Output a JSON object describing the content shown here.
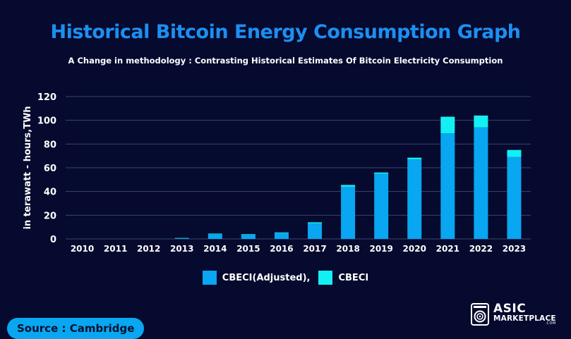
{
  "title": "Historical Bitcoin Energy Consumption Graph",
  "subtitle": "A Change in methodology : Contrasting Historical Estimates Of Bitcoin Electricity Consumption",
  "source_label": "Source : Cambridge",
  "logo": {
    "line1": "ASIC",
    "line2": "MARKETPLACE",
    "line3": ".COM",
    "icon": "asic-miner-icon"
  },
  "colors": {
    "background": "#050a2e",
    "title": "#1d8ff0",
    "adjusted": "#09a6f1",
    "cbeci": "#12f0f4",
    "grid": "#3c4470"
  },
  "chart_data": {
    "type": "bar",
    "stacked": true,
    "categories": [
      "2010",
      "2011",
      "2012",
      "2013",
      "2014",
      "2015",
      "2016",
      "2017",
      "2018",
      "2019",
      "2020",
      "2021",
      "2022",
      "2023"
    ],
    "series": [
      {
        "name": "CBECI(Adjusted),",
        "values": [
          0,
          0,
          0,
          0.5,
          4,
          3.5,
          5,
          13,
          44,
          55,
          67,
          89,
          94,
          69
        ]
      },
      {
        "name": "CBECI",
        "values": [
          0,
          0,
          0,
          0.3,
          0.5,
          0.5,
          0.5,
          1,
          1.5,
          1,
          1.5,
          14,
          10,
          6
        ]
      }
    ],
    "title": "",
    "xlabel": "",
    "ylabel": "in terawatt - hours,TWh",
    "ylim": [
      0,
      120
    ],
    "yticks": [
      0,
      20,
      40,
      60,
      80,
      100,
      120
    ],
    "grid": true,
    "legend_position": "bottom"
  }
}
